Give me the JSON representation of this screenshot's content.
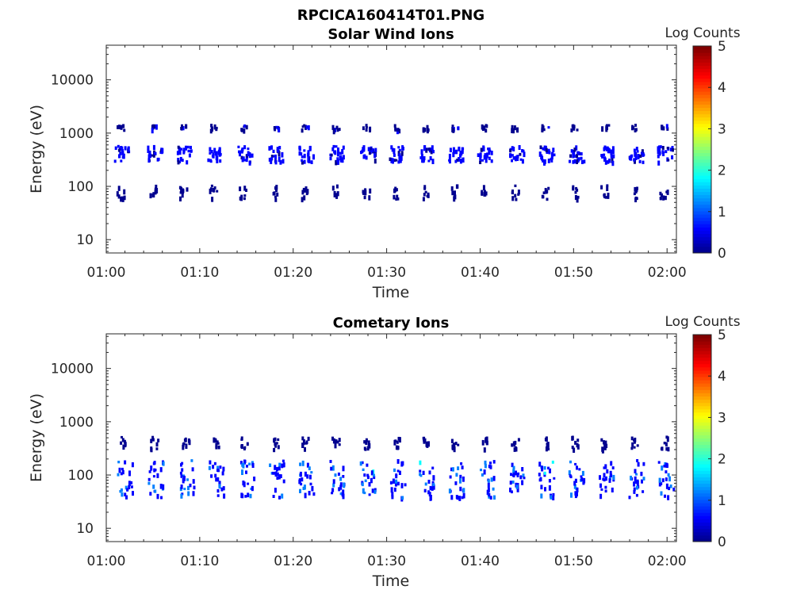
{
  "figure_title": "RPCICA160414T01.PNG",
  "colors": {
    "colormap": [
      "#00008f",
      "#0000ff",
      "#0080ff",
      "#00ffff",
      "#80ff80",
      "#ffff00",
      "#ff8000",
      "#ff0000",
      "#800000"
    ]
  },
  "chart_data": [
    {
      "type": "heatmap",
      "title": "Solar Wind Ions",
      "xlabel": "Time",
      "ylabel": "Energy (eV)",
      "x_ticks": [
        "01:00",
        "01:10",
        "01:20",
        "01:30",
        "01:40",
        "01:50",
        "02:00"
      ],
      "y_ticks": [
        "10",
        "100",
        "1000",
        "10000"
      ],
      "y_scale": "log",
      "colorbar": {
        "label": "Log Counts",
        "ticks": [
          "0",
          "1",
          "2",
          "3",
          "4",
          "5"
        ],
        "range": [
          0,
          5
        ]
      },
      "cycle_minutes": [
        1.3,
        4.8,
        8.0,
        11.2,
        14.4,
        17.8,
        21.0,
        24.3,
        27.6,
        30.7,
        33.9,
        37.0,
        40.1,
        43.5,
        46.7,
        49.9,
        53.1,
        56.3,
        59.4
      ],
      "bands": [
        {
          "energy_min": 1200,
          "energy_max": 1500,
          "level": 0.3
        },
        {
          "energy_min": 300,
          "energy_max": 600,
          "level": 0.7
        },
        {
          "energy_min": 60,
          "energy_max": 110,
          "level": 0.1
        }
      ]
    },
    {
      "type": "heatmap",
      "title": "Cometary Ions",
      "xlabel": "Time",
      "ylabel": "Energy (eV)",
      "x_ticks": [
        "01:00",
        "01:10",
        "01:20",
        "01:30",
        "01:40",
        "01:50",
        "02:00"
      ],
      "y_ticks": [
        "10",
        "100",
        "1000",
        "10000"
      ],
      "y_scale": "log",
      "colorbar": {
        "label": "Log Counts",
        "ticks": [
          "0",
          "1",
          "2",
          "3",
          "4",
          "5"
        ],
        "range": [
          0,
          5
        ]
      },
      "cycle_minutes": [
        1.6,
        4.9,
        8.3,
        11.4,
        14.6,
        17.8,
        21.0,
        24.3,
        27.6,
        30.8,
        33.9,
        37.1,
        40.3,
        43.5,
        46.7,
        49.9,
        53.1,
        56.3,
        59.5
      ],
      "bands": [
        {
          "energy_min": 320,
          "energy_max": 550,
          "level": 0.2
        },
        {
          "energy_min": 40,
          "energy_max": 200,
          "level": 0.9
        }
      ]
    }
  ]
}
